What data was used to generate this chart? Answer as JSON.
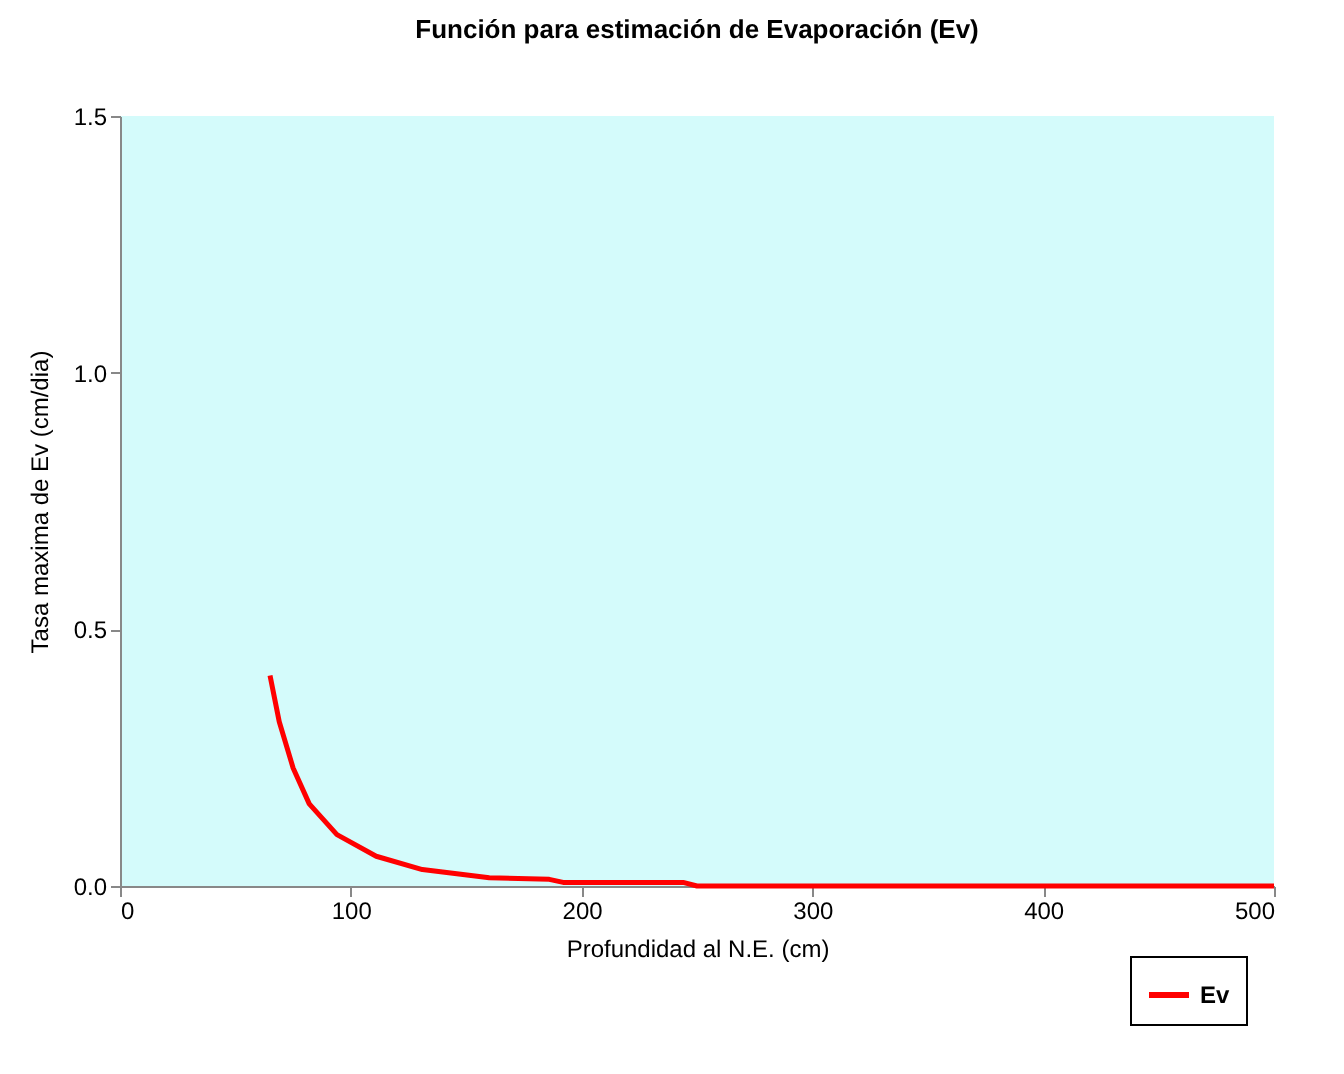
{
  "chart_data": {
    "type": "line",
    "title": "Función para estimación de Evaporación (Ev)",
    "xlabel": "Profundidad al N.E. (cm)",
    "ylabel": "Tasa maxima de Ev (cm/dia)",
    "x": [
      65,
      69,
      75,
      82,
      94,
      111,
      131,
      160,
      186,
      192,
      244,
      250,
      300,
      400,
      500
    ],
    "series": [
      {
        "name": "Ev",
        "color": "#ff0000",
        "values": [
          0.41,
          0.32,
          0.23,
          0.16,
          0.1,
          0.058,
          0.032,
          0.016,
          0.013,
          0.007,
          0.007,
          0.0,
          0.0,
          0.0,
          0.0
        ]
      }
    ],
    "xlim": [
      0,
      500
    ],
    "xticks": [
      0,
      100,
      200,
      300,
      400,
      500
    ],
    "ylim": [
      0,
      1.5
    ],
    "yticks": [
      {
        "value": 0,
        "label": "0.0"
      },
      {
        "value": 0.5,
        "label": "0.5"
      },
      {
        "value": 1,
        "label": "1.0"
      },
      {
        "value": 1.5,
        "label": "1.5"
      }
    ],
    "legend": "bottom right",
    "marker": "none",
    "line_style": "solid",
    "grid": false
  }
}
